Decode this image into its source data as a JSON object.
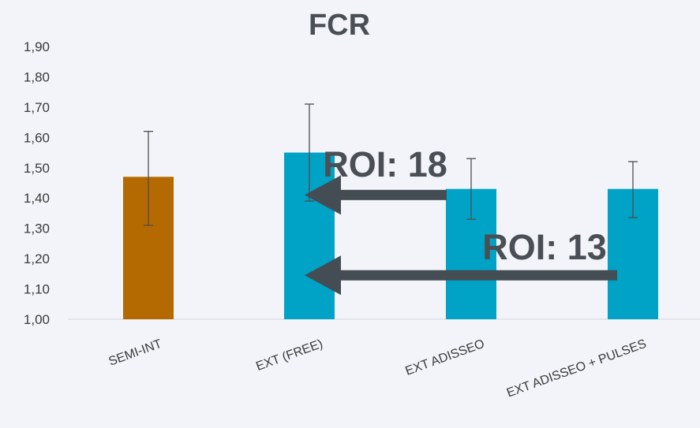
{
  "chart_data": {
    "type": "bar",
    "title": "FCR",
    "xlabel": "",
    "ylabel": "",
    "categories": [
      "SEMI-INT",
      "EXT (FREE)",
      "EXT ADISSEO",
      "EXT ADISSEO + PULSES"
    ],
    "values": [
      1.47,
      1.55,
      1.43,
      1.43
    ],
    "error_low": [
      1.31,
      1.39,
      1.33,
      1.335
    ],
    "error_high": [
      1.62,
      1.71,
      1.53,
      1.52
    ],
    "ylim": [
      1.0,
      1.9
    ],
    "yticks": [
      "1,00",
      "1,10",
      "1,20",
      "1,30",
      "1,40",
      "1,50",
      "1,60",
      "1,70",
      "1,80",
      "1,90"
    ],
    "grid": false,
    "colors": [
      "#b46a00",
      "#00a3c6",
      "#00a3c6",
      "#00a3c6"
    ],
    "annotations": [
      {
        "text": "ROI: 18",
        "arrow_from": "EXT ADISSEO",
        "arrow_to": "EXT (FREE)",
        "y": 1.41
      },
      {
        "text": "ROI: 13",
        "arrow_from": "EXT ADISSEO + PULSES",
        "arrow_to": "EXT (FREE)",
        "y": 1.145
      }
    ],
    "arrow_color": "#454d54"
  }
}
